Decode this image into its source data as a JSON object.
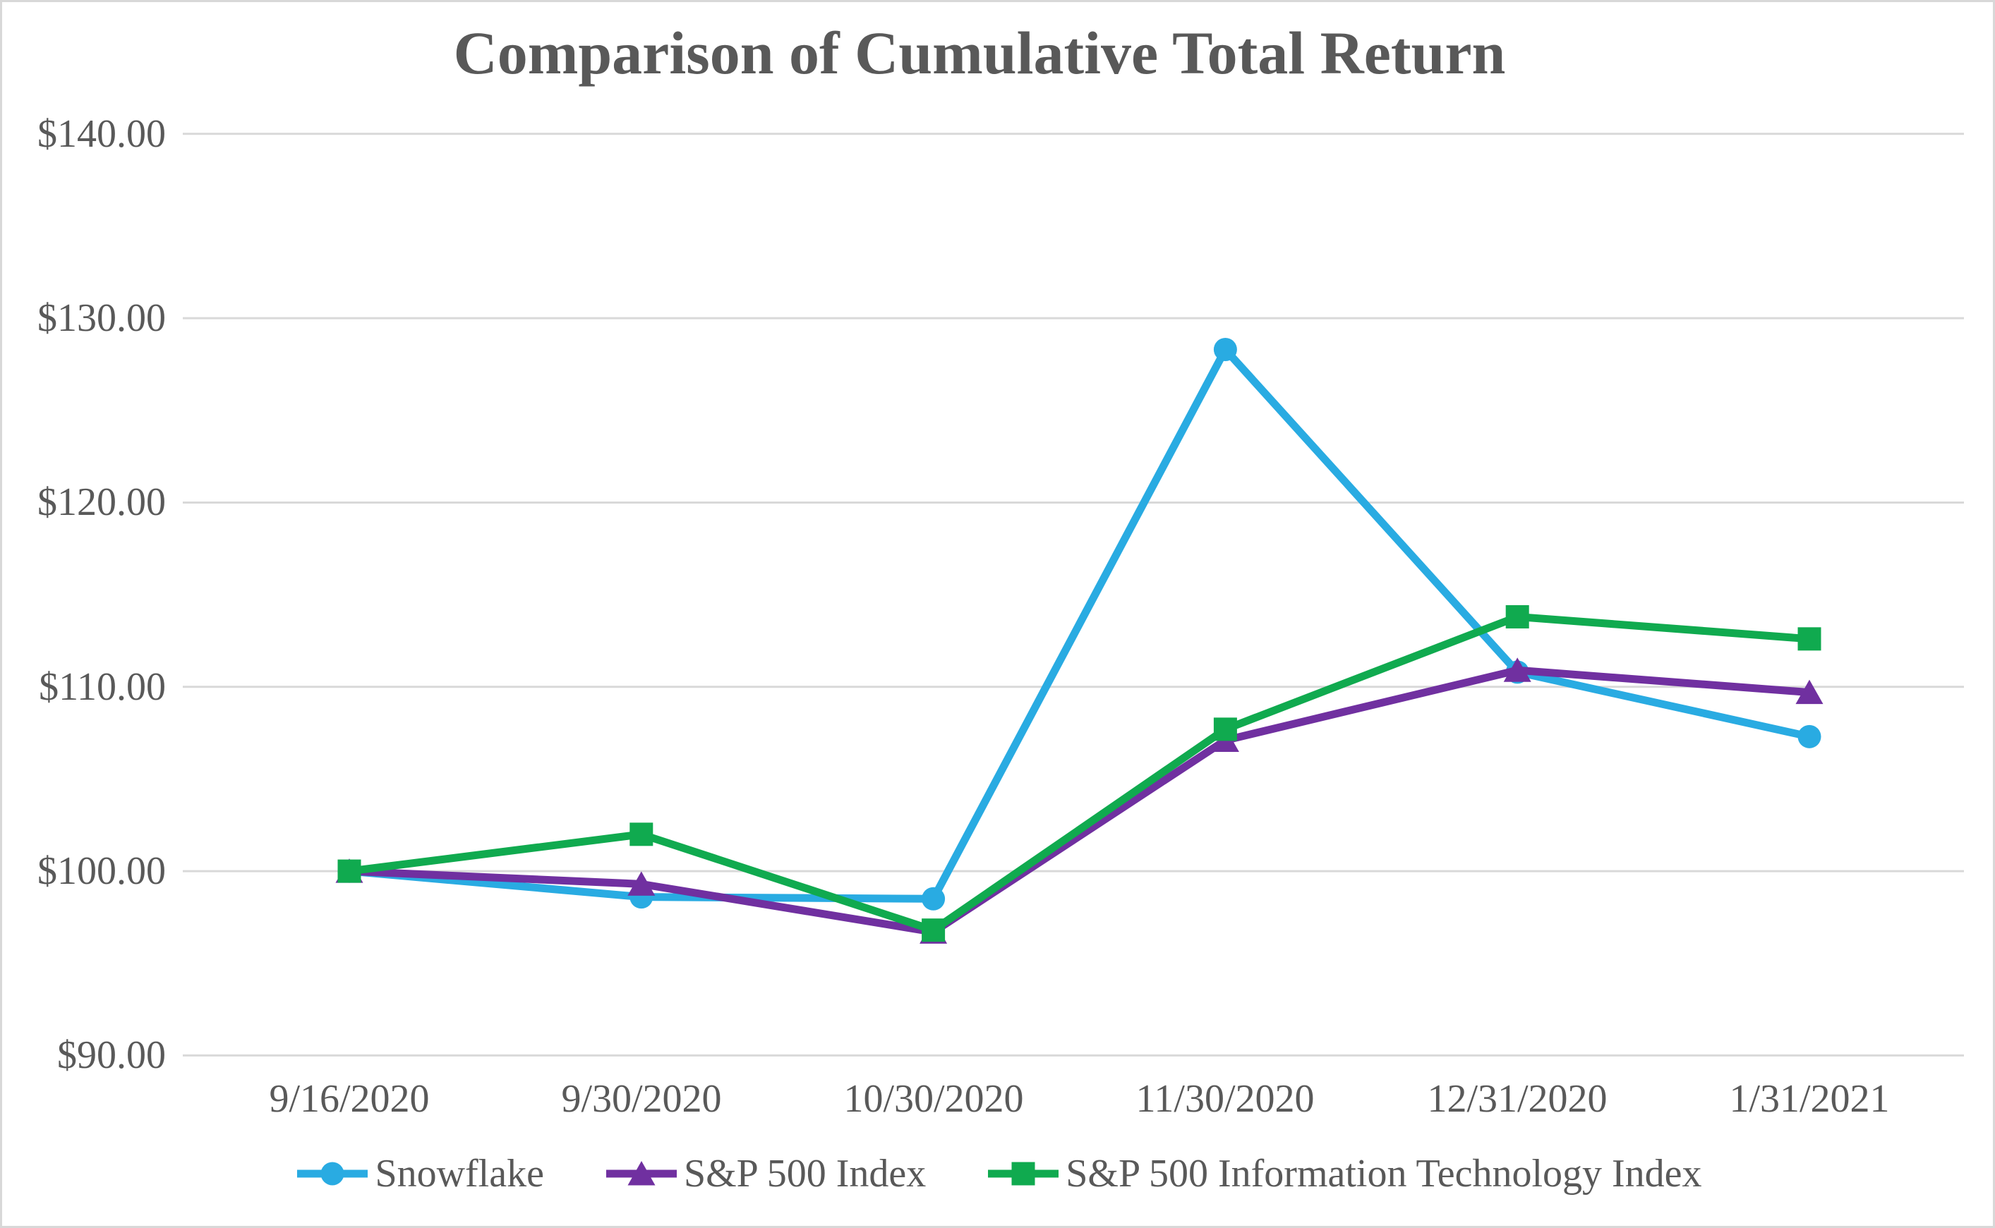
{
  "title": "Comparison of Cumulative Total Return",
  "chart_data": {
    "type": "line",
    "title": "Comparison of Cumulative Total Return",
    "categories": [
      "9/16/2020",
      "9/30/2020",
      "10/30/2020",
      "11/30/2020",
      "12/31/2020",
      "1/31/2021"
    ],
    "series": [
      {
        "name": "Snowflake",
        "marker": "circle",
        "color": "#29ABE2",
        "values": [
          100.0,
          98.6,
          98.5,
          128.3,
          110.8,
          107.3
        ]
      },
      {
        "name": "S&P 500 Index",
        "marker": "triangle",
        "color": "#7030A0",
        "values": [
          100.0,
          99.3,
          96.7,
          107.1,
          110.9,
          109.7
        ]
      },
      {
        "name": "S&P 500 Information Technology Index",
        "marker": "square",
        "color": "#10AA4F",
        "values": [
          100.0,
          102.0,
          96.8,
          107.7,
          113.8,
          112.6
        ]
      }
    ],
    "ylim": [
      90,
      140
    ],
    "ytick_step": 10,
    "ytick_labels": [
      "$140.00",
      "$130.00",
      "$120.00",
      "$110.00",
      "$100.00",
      "$90.00"
    ],
    "xlabel": "",
    "ylabel": "",
    "grid": "horizontal",
    "gridline_color": "#D9D9D9",
    "text_color": "#595959",
    "legend_position": "bottom"
  }
}
